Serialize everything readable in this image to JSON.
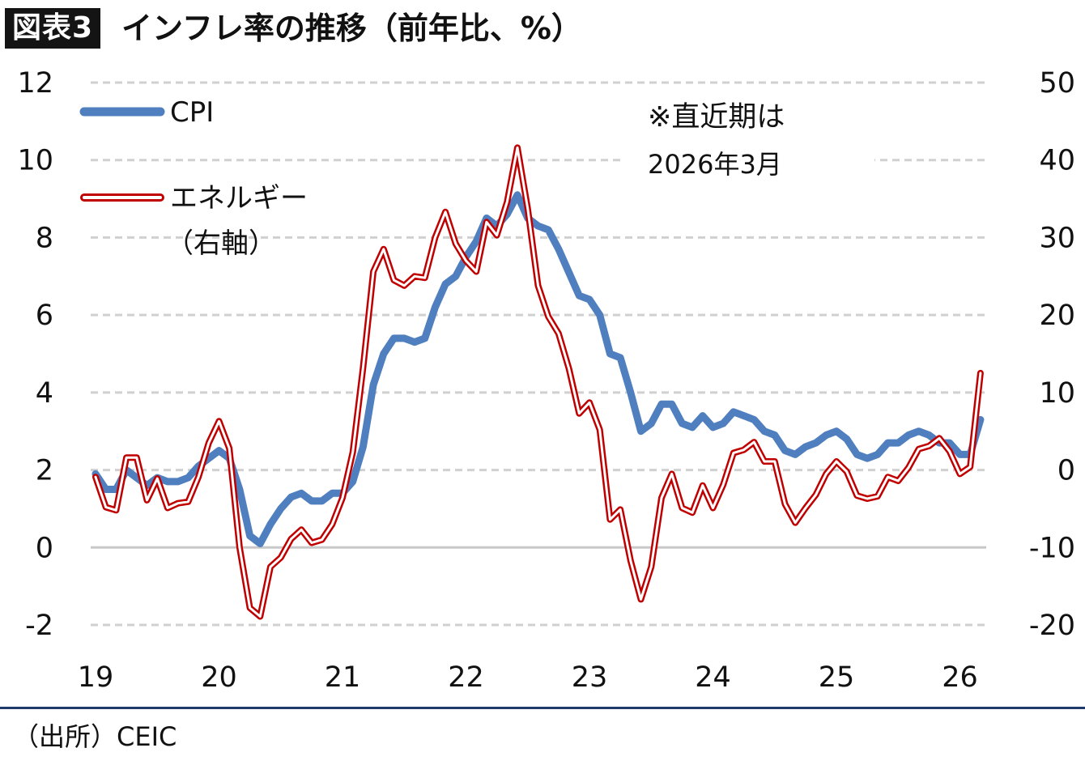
{
  "header": {
    "badge": "図表3",
    "title": "インフレ率の推移（前年比、%）"
  },
  "source": "（出所）CEIC",
  "chart_data": {
    "type": "line",
    "x_tick_labels": [
      "19",
      "20",
      "21",
      "22",
      "23",
      "24",
      "25",
      "26"
    ],
    "x_tick_years": [
      2019,
      2020,
      2021,
      2022,
      2023,
      2024,
      2025,
      2026
    ],
    "y_left": {
      "ylim": [
        -2,
        12
      ],
      "ticks": [
        "-2",
        "0",
        "2",
        "4",
        "6",
        "8",
        "10",
        "12"
      ]
    },
    "y_right": {
      "ylim": [
        -20,
        50
      ],
      "ticks": [
        "-20",
        "-10",
        "0",
        "10",
        "20",
        "30",
        "40",
        "50"
      ]
    },
    "grid": true,
    "legend_placement": "top-left",
    "annotation": {
      "line1": "※直近期は",
      "line2": "2026年3月"
    },
    "x_start": "2019-01",
    "series": [
      {
        "name": "CPI",
        "axis": "left",
        "color": "#4f7fbf",
        "values": [
          1.9,
          1.5,
          1.5,
          2.0,
          1.8,
          1.6,
          1.8,
          1.7,
          1.7,
          1.8,
          2.1,
          2.3,
          2.5,
          2.3,
          1.5,
          0.3,
          0.1,
          0.6,
          1.0,
          1.3,
          1.4,
          1.2,
          1.2,
          1.4,
          1.4,
          1.7,
          2.6,
          4.2,
          5.0,
          5.4,
          5.4,
          5.3,
          5.4,
          6.2,
          6.8,
          7.0,
          7.5,
          7.9,
          8.5,
          8.3,
          8.6,
          9.1,
          8.5,
          8.3,
          8.2,
          7.7,
          7.1,
          6.5,
          6.4,
          6.0,
          5.0,
          4.9,
          4.0,
          3.0,
          3.2,
          3.7,
          3.7,
          3.2,
          3.1,
          3.4,
          3.1,
          3.2,
          3.5,
          3.4,
          3.3,
          3.0,
          2.9,
          2.5,
          2.4,
          2.6,
          2.7,
          2.9,
          3.0,
          2.8,
          2.4,
          2.3,
          2.4,
          2.7,
          2.7,
          2.9,
          3.0,
          2.9,
          2.7,
          2.7,
          2.4,
          2.4,
          3.3
        ]
      },
      {
        "name": "エネルギー（右軸）",
        "axis": "right",
        "color": "#c00000",
        "values": [
          -0.9,
          -4.8,
          -5.2,
          1.6,
          1.6,
          -3.9,
          -1.1,
          -4.9,
          -4.3,
          -4.1,
          -0.9,
          3.5,
          6.3,
          2.8,
          -10.0,
          -17.8,
          -18.9,
          -12.5,
          -11.3,
          -8.9,
          -7.7,
          -9.4,
          -9.0,
          -7.0,
          -3.6,
          2.3,
          13.2,
          25.6,
          28.5,
          24.5,
          23.8,
          25.0,
          24.8,
          30.0,
          33.3,
          29.2,
          27.0,
          25.6,
          32.0,
          30.3,
          34.6,
          41.6,
          33.7,
          23.8,
          19.8,
          17.6,
          13.1,
          7.3,
          8.7,
          5.2,
          -6.4,
          -5.1,
          -11.7,
          -16.7,
          -12.5,
          -3.6,
          -0.5,
          -4.9,
          -5.5,
          -2.0,
          -4.9,
          -1.9,
          2.2,
          2.6,
          3.6,
          1.1,
          1.1,
          -4.4,
          -6.8,
          -4.9,
          -3.2,
          -0.5,
          1.1,
          -0.2,
          -3.3,
          -3.7,
          -3.4,
          -0.9,
          -1.4,
          0.3,
          2.7,
          3.1,
          4.1,
          2.4,
          -0.5,
          0.4,
          12.5
        ]
      }
    ]
  }
}
